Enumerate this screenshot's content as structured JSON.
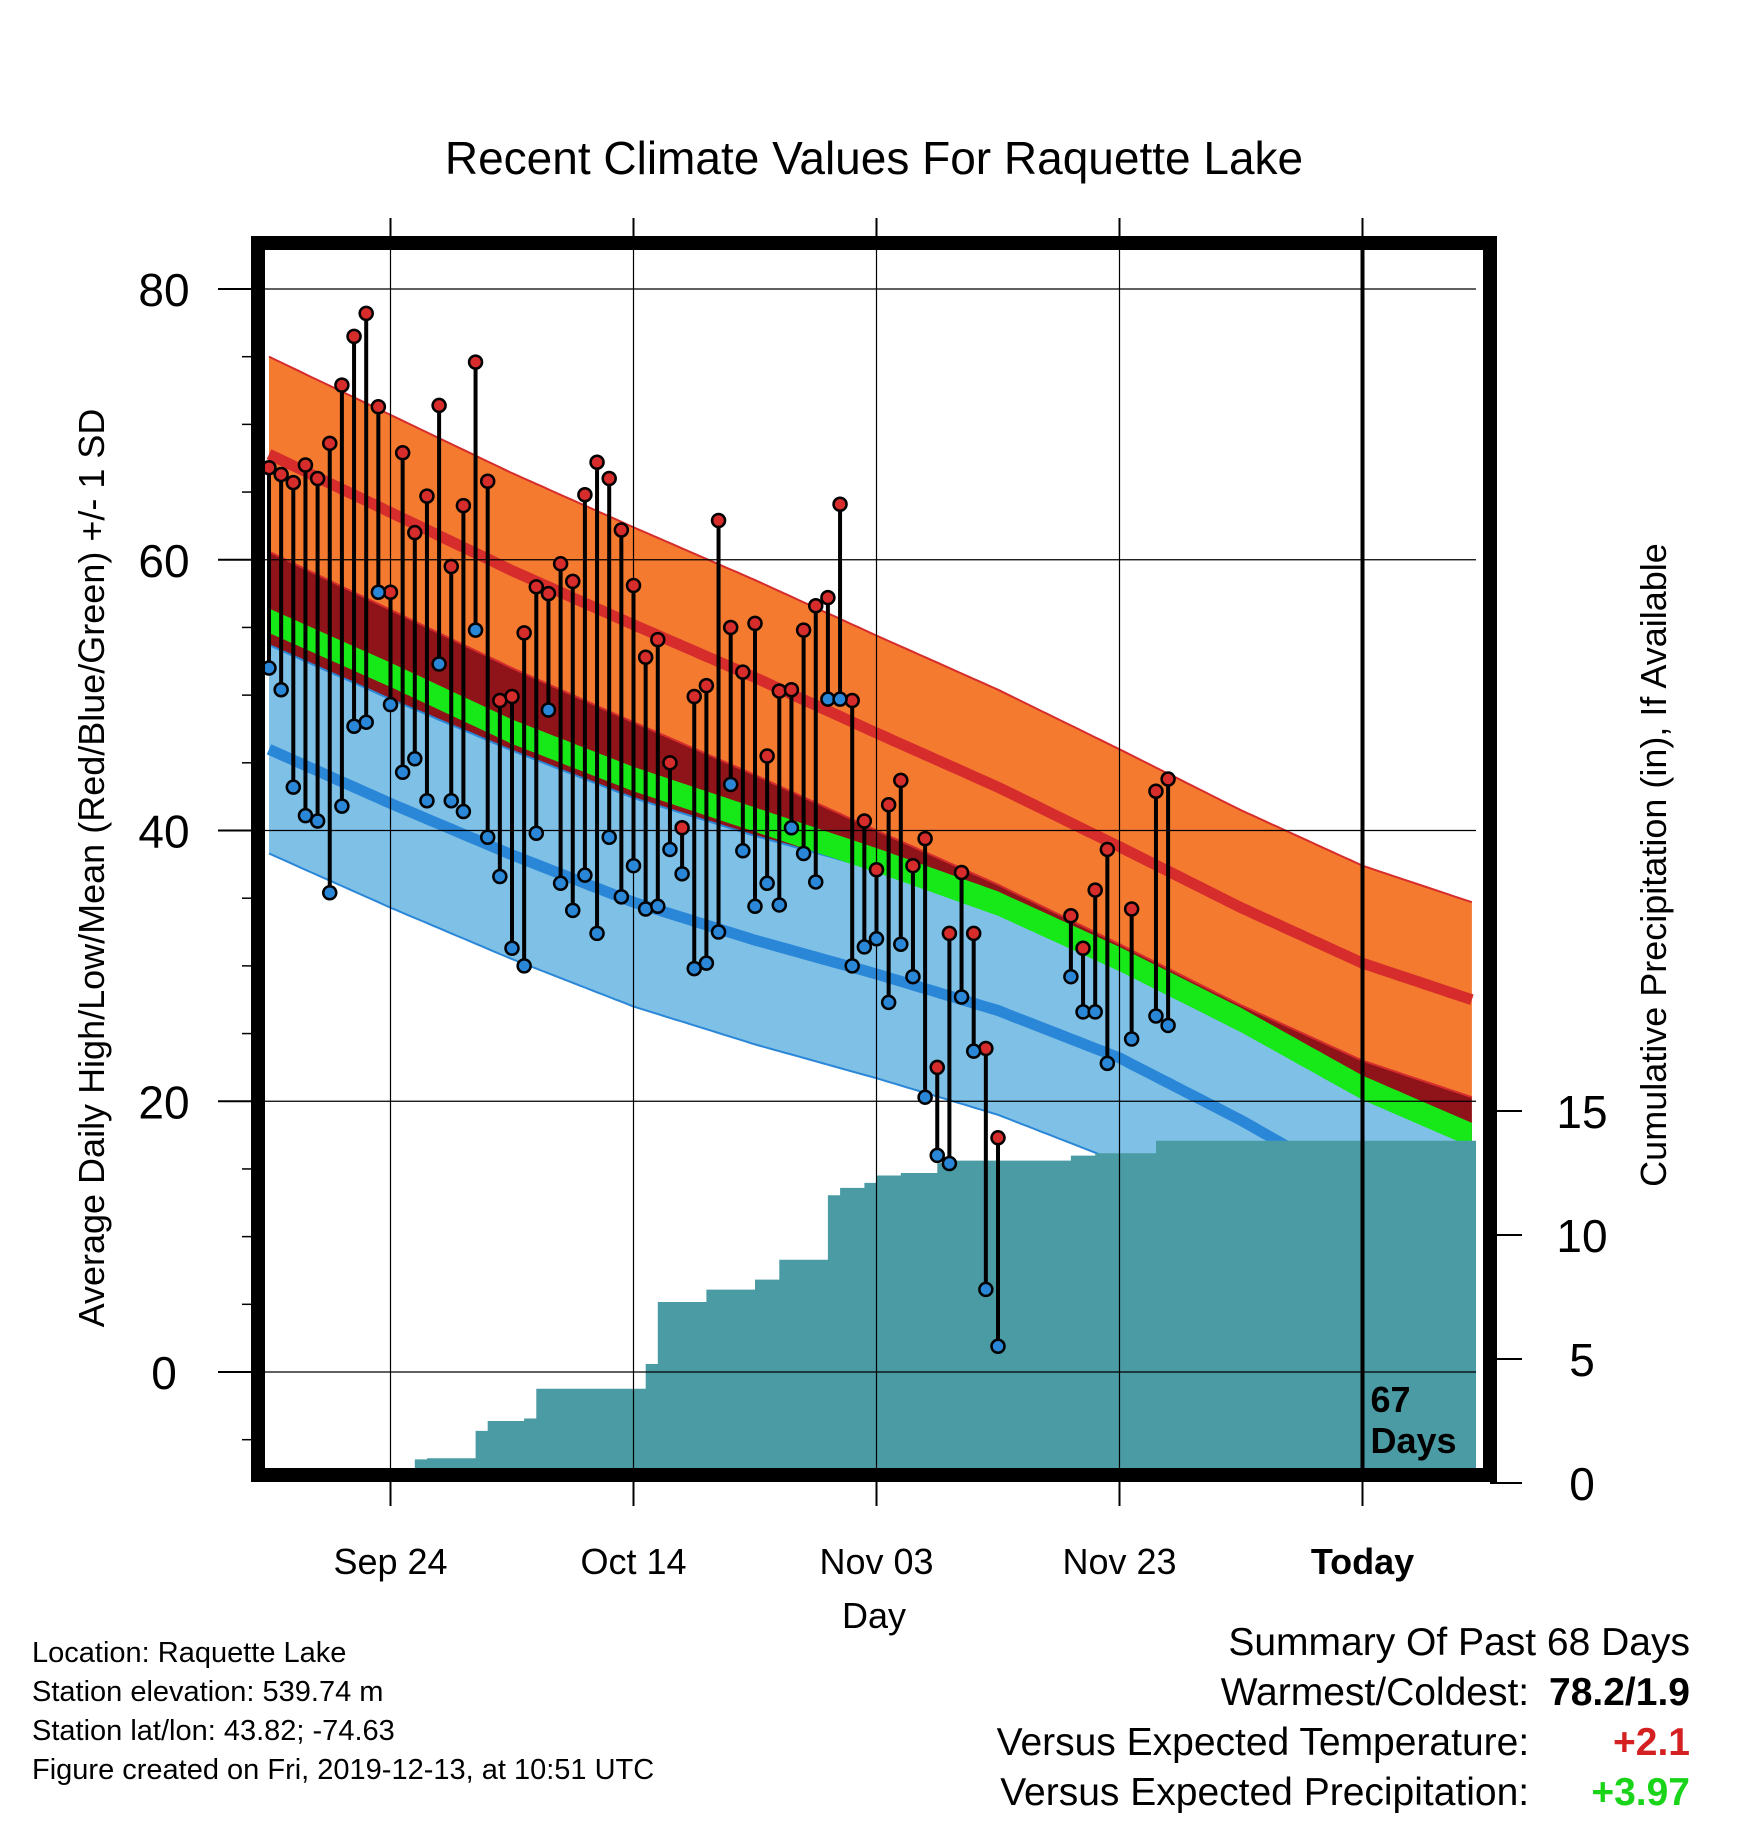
{
  "chart_data": {
    "type": "line",
    "title": "Recent Climate Values For Raquette Lake",
    "xlabel": "Day",
    "ylabel": "Average Daily High/Low/Mean (Red/Blue/Green) +/- 1 SD",
    "y2label": "Cumulative Precipitation (in), If Available",
    "x_start": "Sep 14",
    "x_range_days": [
      0,
      72
    ],
    "ylim": [
      -7.5,
      83
    ],
    "y2lim": [
      0,
      31.5
    ],
    "x_ticks": [
      {
        "day": 10,
        "label": "Sep 24"
      },
      {
        "day": 30,
        "label": "Oct 14"
      },
      {
        "day": 50,
        "label": "Nov 03"
      },
      {
        "day": 70,
        "label": "Nov 23"
      },
      {
        "day": 90,
        "label": "Today"
      }
    ],
    "y_ticks": [
      0,
      20,
      40,
      60,
      80
    ],
    "y2_ticks": [
      0,
      5,
      10,
      15
    ],
    "today_day": 90,
    "today_label_line1": "67",
    "today_label_line2": "Days",
    "normals": {
      "days": [
        0,
        10,
        20,
        30,
        40,
        50,
        60,
        70,
        80,
        90,
        99
      ],
      "high_mean": [
        67.8,
        63.5,
        59.2,
        55.2,
        51.3,
        47.2,
        43.2,
        38.8,
        34.3,
        30.2,
        27.5
      ],
      "high_sd": 7.2,
      "low_mean": [
        46.0,
        42.0,
        38.2,
        34.7,
        31.9,
        29.4,
        26.7,
        23.2,
        18.6,
        13.5,
        9.2
      ],
      "low_sd": 7.7,
      "avg_mean": [
        55.5,
        51.5,
        47.3,
        43.8,
        40.8,
        37.8,
        34.6,
        30.5,
        26.0,
        21.0,
        17.5
      ],
      "avg_band": 0.9
    },
    "series": [
      {
        "name": "Daily High",
        "color": "#d62c2c",
        "values": [
          [
            0,
            66.8
          ],
          [
            1,
            66.3
          ],
          [
            2,
            65.7
          ],
          [
            3,
            67.0
          ],
          [
            4,
            66.0
          ],
          [
            5,
            68.6
          ],
          [
            6,
            72.9
          ],
          [
            7,
            76.5
          ],
          [
            8,
            78.2
          ],
          [
            9,
            71.3
          ],
          [
            10,
            57.6
          ],
          [
            11,
            67.9
          ],
          [
            12,
            62.0
          ],
          [
            13,
            64.7
          ],
          [
            14,
            71.4
          ],
          [
            15,
            59.5
          ],
          [
            16,
            64.0
          ],
          [
            17,
            74.6
          ],
          [
            18,
            65.8
          ],
          [
            19,
            49.6
          ],
          [
            20,
            49.9
          ],
          [
            21,
            54.6
          ],
          [
            22,
            58.0
          ],
          [
            23,
            57.5
          ],
          [
            24,
            59.7
          ],
          [
            25,
            58.4
          ],
          [
            26,
            64.8
          ],
          [
            27,
            67.2
          ],
          [
            28,
            66.0
          ],
          [
            29,
            62.2
          ],
          [
            30,
            58.1
          ],
          [
            31,
            52.8
          ],
          [
            32,
            54.1
          ],
          [
            33,
            45.0
          ],
          [
            34,
            40.2
          ],
          [
            35,
            49.9
          ],
          [
            36,
            50.7
          ],
          [
            37,
            62.9
          ],
          [
            38,
            55.0
          ],
          [
            39,
            51.7
          ],
          [
            40,
            55.3
          ],
          [
            41,
            45.5
          ],
          [
            42,
            50.3
          ],
          [
            43,
            50.4
          ],
          [
            44,
            54.8
          ],
          [
            45,
            56.6
          ],
          [
            46,
            57.2
          ],
          [
            47,
            64.1
          ],
          [
            48,
            49.6
          ],
          [
            49,
            40.7
          ],
          [
            50,
            37.1
          ],
          [
            51,
            41.9
          ],
          [
            52,
            43.7
          ],
          [
            53,
            37.4
          ],
          [
            54,
            39.4
          ],
          [
            55,
            22.5
          ],
          [
            56,
            32.4
          ],
          [
            57,
            36.9
          ],
          [
            58,
            32.4
          ],
          [
            59,
            23.9
          ],
          [
            60,
            17.3
          ],
          [
            66,
            33.7
          ],
          [
            67,
            31.3
          ],
          [
            68,
            35.6
          ],
          [
            69,
            38.6
          ],
          [
            71,
            34.2
          ],
          [
            73,
            42.9
          ],
          [
            74,
            43.8
          ]
        ]
      },
      {
        "name": "Daily Low",
        "color": "#2a87d8",
        "values": [
          [
            0,
            52.0
          ],
          [
            1,
            50.4
          ],
          [
            2,
            43.2
          ],
          [
            3,
            41.1
          ],
          [
            4,
            40.7
          ],
          [
            5,
            35.4
          ],
          [
            6,
            41.8
          ],
          [
            7,
            47.7
          ],
          [
            8,
            48.0
          ],
          [
            9,
            57.6
          ],
          [
            10,
            49.3
          ],
          [
            11,
            44.3
          ],
          [
            12,
            45.3
          ],
          [
            13,
            42.2
          ],
          [
            14,
            52.3
          ],
          [
            15,
            42.2
          ],
          [
            16,
            41.4
          ],
          [
            17,
            54.8
          ],
          [
            18,
            39.5
          ],
          [
            19,
            36.6
          ],
          [
            20,
            31.3
          ],
          [
            21,
            30.0
          ],
          [
            22,
            39.8
          ],
          [
            23,
            48.9
          ],
          [
            24,
            36.1
          ],
          [
            25,
            34.1
          ],
          [
            26,
            36.7
          ],
          [
            27,
            32.4
          ],
          [
            28,
            39.5
          ],
          [
            29,
            35.1
          ],
          [
            30,
            37.4
          ],
          [
            31,
            34.2
          ],
          [
            32,
            34.4
          ],
          [
            33,
            38.6
          ],
          [
            34,
            36.8
          ],
          [
            35,
            29.8
          ],
          [
            36,
            30.2
          ],
          [
            37,
            32.5
          ],
          [
            38,
            43.4
          ],
          [
            39,
            38.5
          ],
          [
            40,
            34.4
          ],
          [
            41,
            36.1
          ],
          [
            42,
            34.5
          ],
          [
            43,
            40.2
          ],
          [
            44,
            38.3
          ],
          [
            45,
            36.2
          ],
          [
            46,
            49.7
          ],
          [
            47,
            49.7
          ],
          [
            48,
            30.0
          ],
          [
            49,
            31.4
          ],
          [
            50,
            32.0
          ],
          [
            51,
            27.3
          ],
          [
            52,
            31.6
          ],
          [
            53,
            29.2
          ],
          [
            54,
            20.3
          ],
          [
            55,
            16.0
          ],
          [
            56,
            15.4
          ],
          [
            57,
            27.7
          ],
          [
            58,
            23.7
          ],
          [
            59,
            6.1
          ],
          [
            60,
            1.9
          ],
          [
            66,
            29.2
          ],
          [
            67,
            26.6
          ],
          [
            68,
            26.6
          ],
          [
            69,
            22.8
          ],
          [
            71,
            24.6
          ],
          [
            73,
            26.3
          ],
          [
            74,
            25.6
          ]
        ]
      }
    ],
    "precipitation": {
      "name": "Cumulative Precipitation",
      "color": "#4a9ba3",
      "days": [
        9,
        10,
        11,
        12,
        13,
        14,
        15,
        16,
        17,
        18,
        19,
        20,
        21,
        22,
        23,
        24,
        25,
        26,
        27,
        28,
        29,
        30,
        31,
        32,
        33,
        34,
        35,
        36,
        37,
        38,
        39,
        40,
        41,
        42,
        43,
        44,
        45,
        46,
        47,
        48,
        49,
        50,
        51,
        52,
        53,
        54,
        55,
        56,
        57,
        58,
        59,
        60,
        61,
        62,
        63,
        64,
        65,
        66,
        67,
        68,
        69,
        70,
        71,
        72,
        73,
        74,
        75,
        76,
        77,
        78,
        79,
        80,
        81,
        82,
        83,
        84,
        85,
        86,
        87,
        88,
        89,
        90,
        91,
        92,
        93,
        94,
        95,
        96,
        97,
        98,
        99
      ],
      "values": [
        0.3,
        0.55,
        0.6,
        0.95,
        1.0,
        1.0,
        1.0,
        1.0,
        2.1,
        2.5,
        2.5,
        2.5,
        2.6,
        3.8,
        3.8,
        3.8,
        3.8,
        3.8,
        3.8,
        3.8,
        3.8,
        3.8,
        4.8,
        7.3,
        7.3,
        7.3,
        7.3,
        7.8,
        7.8,
        7.8,
        7.8,
        8.2,
        8.2,
        9.0,
        9.0,
        9.0,
        9.0,
        11.6,
        11.9,
        11.9,
        12.1,
        12.4,
        12.4,
        12.5,
        12.5,
        12.5,
        12.9,
        13.0,
        13.0,
        13.0,
        13.0,
        13.0,
        13.0,
        13.0,
        13.0,
        13.0,
        13.0,
        13.2,
        13.2,
        13.3,
        13.3,
        13.3,
        13.3,
        13.3,
        13.8,
        13.8,
        13.8,
        13.8,
        13.8,
        13.8,
        13.8,
        13.8,
        13.8,
        13.8,
        13.8,
        13.8,
        13.8,
        13.8,
        13.8,
        13.8,
        13.8,
        13.8,
        13.8,
        13.8,
        13.8,
        13.8,
        13.8,
        13.8,
        13.8,
        13.8,
        13.8
      ]
    }
  },
  "footer": {
    "location": "Location: Raquette Lake",
    "elevation": "Station elevation: 539.74 m",
    "latlon": "Station lat/lon: 43.82; -74.63",
    "created": "Figure created on Fri, 2019-12-13, at 10:51 UTC"
  },
  "summary": {
    "heading": "Summary Of Past 68 Days",
    "warmest_label": "Warmest/Coldest:",
    "warmest_value": "78.2/1.9",
    "temp_label": "Versus Expected Temperature:",
    "temp_value": "+2.1",
    "precip_label": "Versus Expected Precipitation:",
    "precip_value": "+3.97"
  },
  "colors": {
    "high_band": "#f47a30",
    "high_line": "#d62c2c",
    "low_band": "#7fc0e6",
    "low_line": "#2a87d8",
    "avg_band": "#17e817",
    "overlap": "#8f1419",
    "precip": "#4a9ba3",
    "high_dot": "#d62c2c",
    "low_dot": "#2a87d8"
  }
}
